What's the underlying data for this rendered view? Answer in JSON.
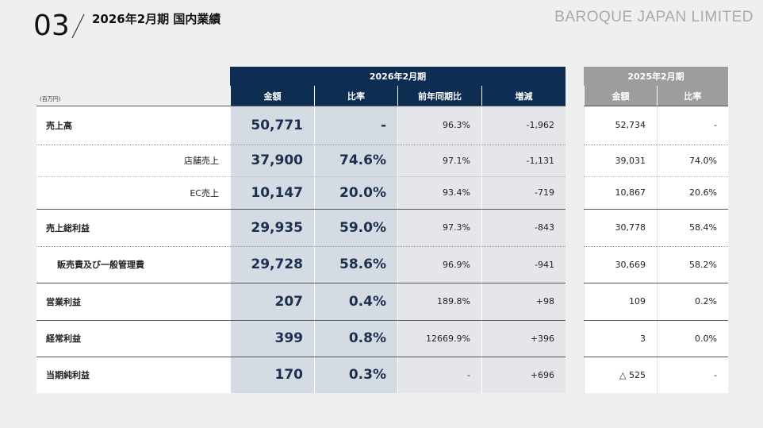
{
  "header": {
    "number": "03",
    "title": "2026年2月期 国内業績",
    "logo": "BAROQUE JAPAN LIMITED"
  },
  "table": {
    "unit": "(百万円)",
    "current_period": "2026年2月期",
    "previous_period": "2025年2月期",
    "current_columns": [
      "金額",
      "比率",
      "前年同期比",
      "増減"
    ],
    "previous_columns": [
      "金額",
      "比率"
    ],
    "rows": [
      [
        "売上高",
        "50,771",
        "-",
        "96.3%",
        "-1,962",
        "52,734",
        "-"
      ],
      [
        "店舗売上",
        "37,900",
        "74.6%",
        "97.1%",
        "-1,131",
        "39,031",
        "74.0%"
      ],
      [
        "EC売上",
        "10,147",
        "20.0%",
        "93.4%",
        "-719",
        "10,867",
        "20.6%"
      ],
      [
        "売上総利益",
        "29,935",
        "59.0%",
        "97.3%",
        "-843",
        "30,778",
        "58.4%"
      ],
      [
        "販売費及び一般管理費",
        "29,728",
        "58.6%",
        "96.9%",
        "-941",
        "30,669",
        "58.2%"
      ],
      [
        "営業利益",
        "207",
        "0.4%",
        "189.8%",
        "+98",
        "109",
        "0.2%"
      ],
      [
        "経常利益",
        "399",
        "0.8%",
        "12669.9%",
        "+396",
        "3",
        "0.0%"
      ],
      [
        "当期純利益",
        "170",
        "0.3%",
        "-",
        "+696",
        "△ 525",
        "-"
      ]
    ]
  }
}
